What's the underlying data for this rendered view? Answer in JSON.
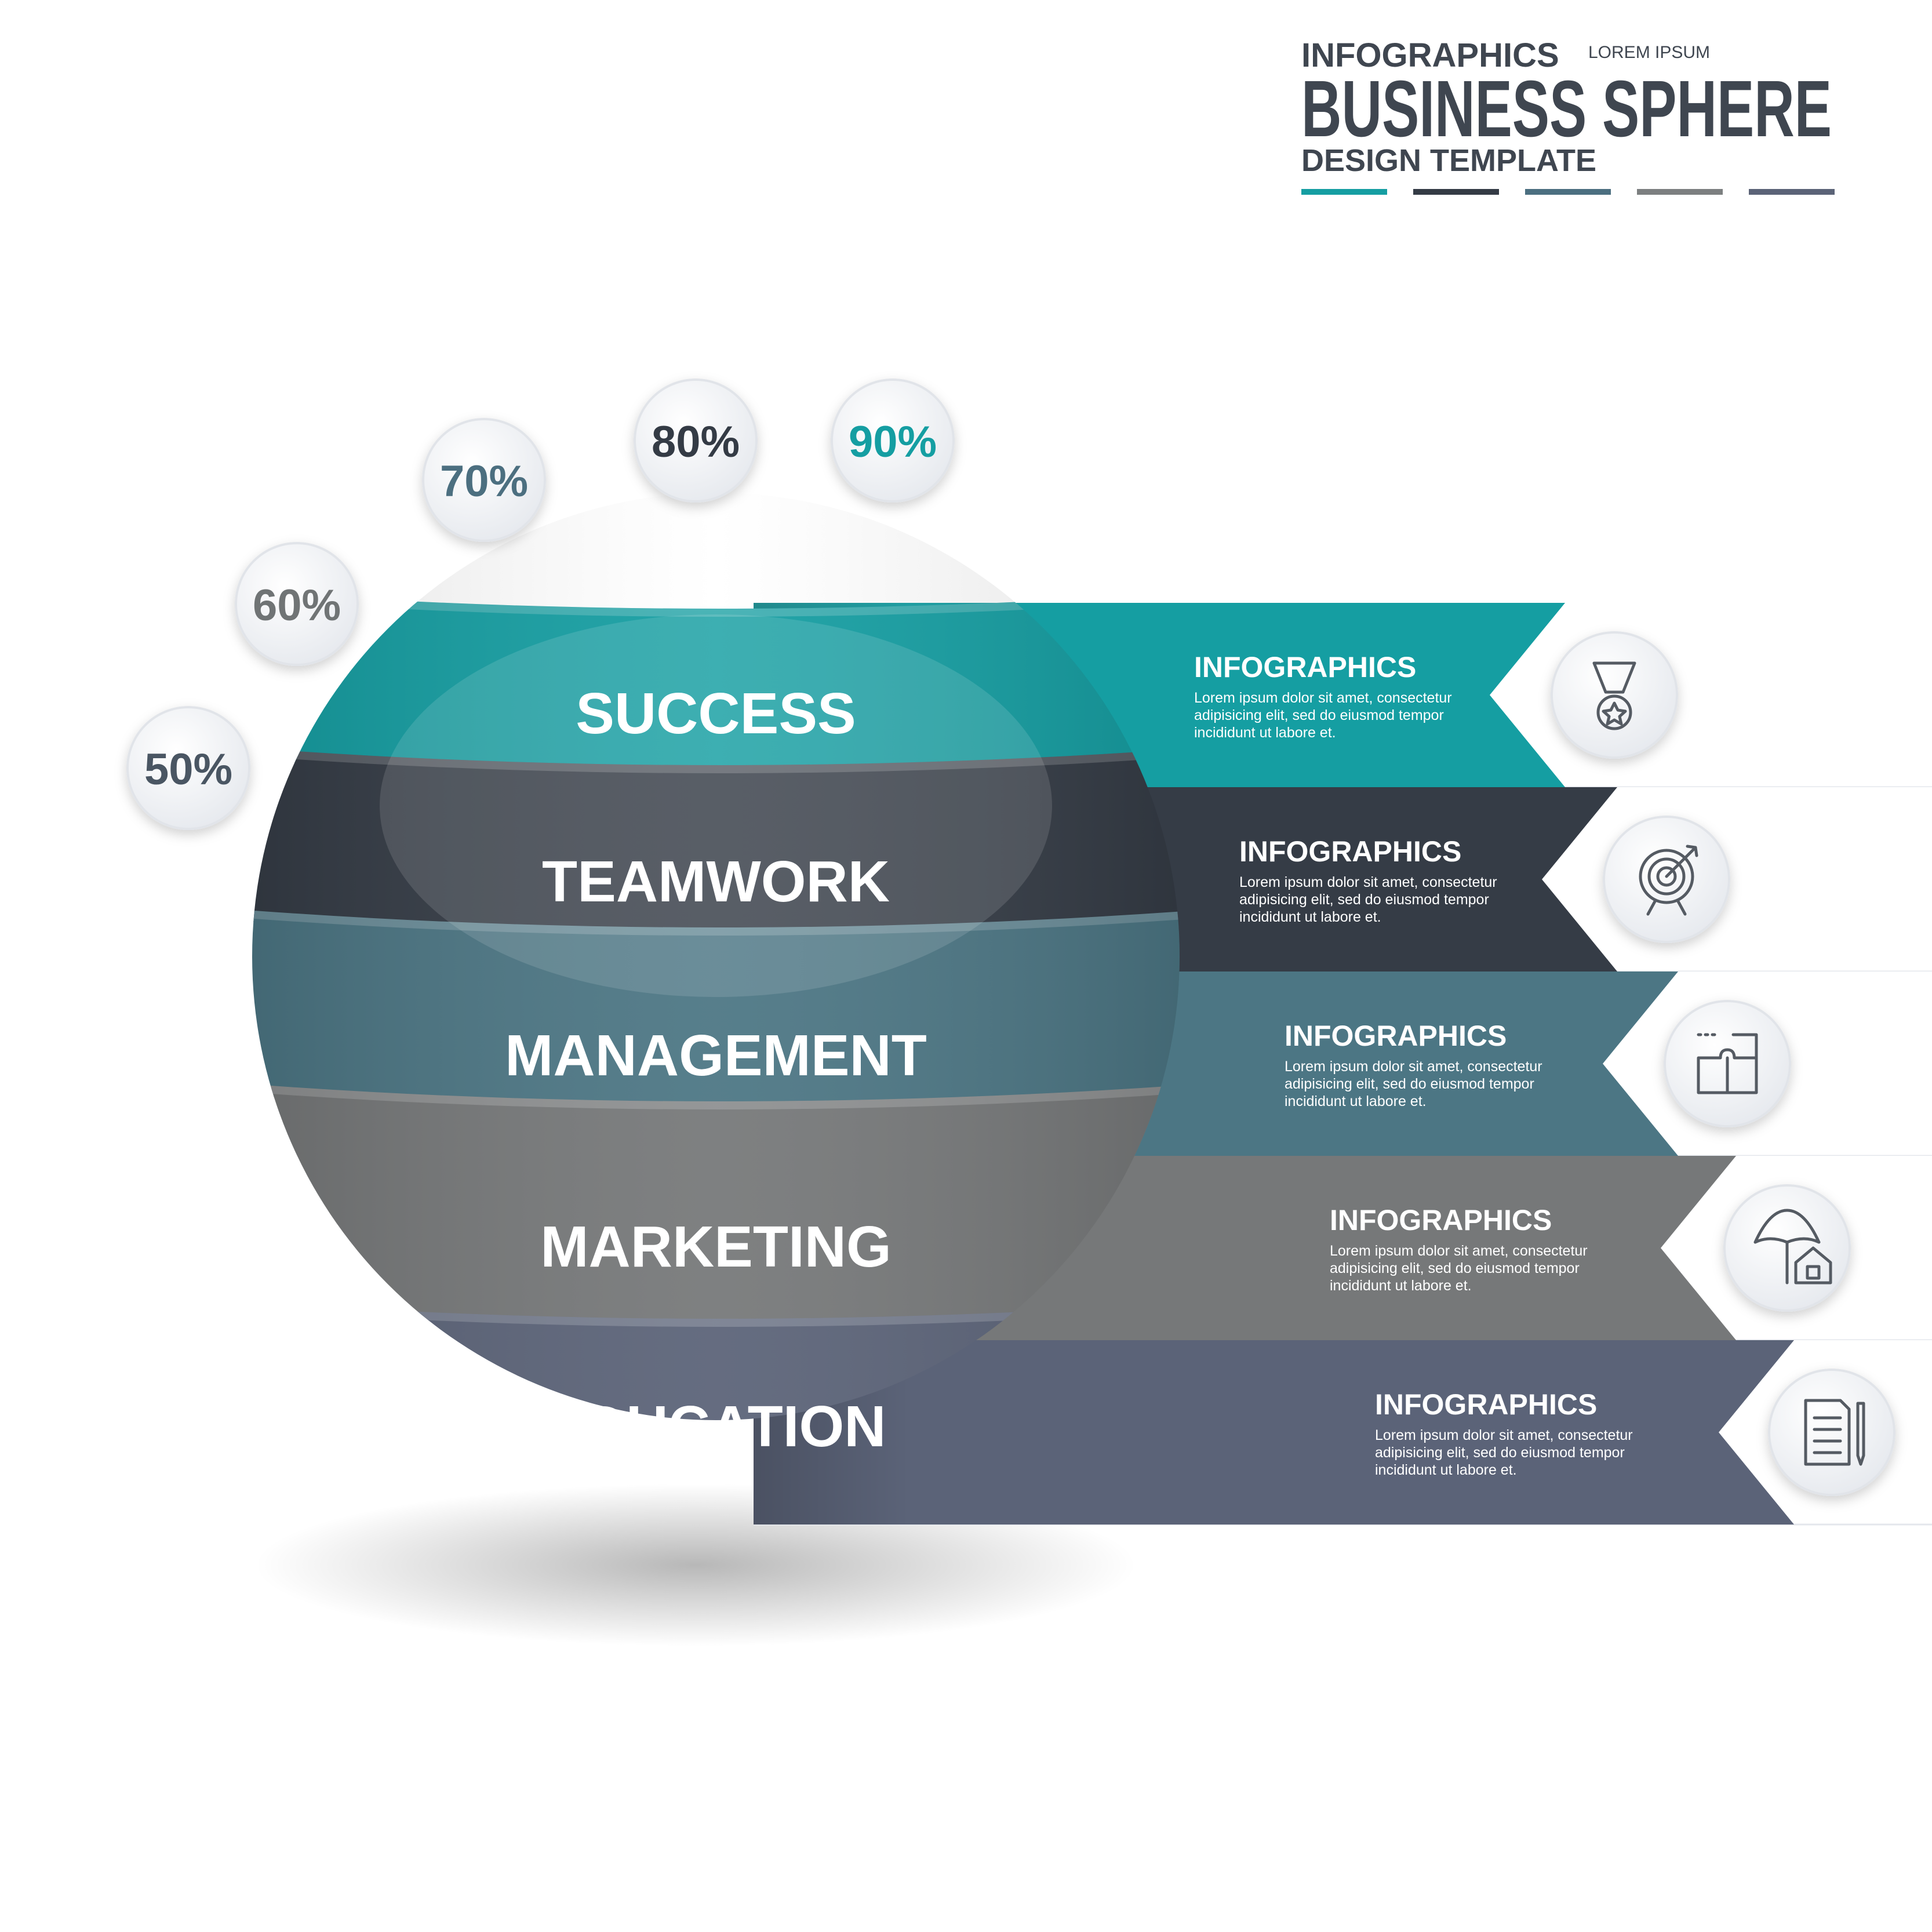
{
  "header": {
    "kicker": "INFOGRAPHICS",
    "kicker_small": "LOREM IPSUM",
    "title": "BUSINESS SPHERE",
    "subtitle": "DESIGN TEMPLATE",
    "color_bars": [
      "#159ea2",
      "#343b45",
      "#4c6f80",
      "#7c7f80",
      "#5b6377"
    ]
  },
  "percent_badges": [
    {
      "label": "50%",
      "color": "#4a5663"
    },
    {
      "label": "60%",
      "color": "#707475"
    },
    {
      "label": "70%",
      "color": "#4c6f80"
    },
    {
      "label": "80%",
      "color": "#343b45"
    },
    {
      "label": "90%",
      "color": "#159ea2"
    }
  ],
  "layers": [
    {
      "label": "SUCCESS",
      "color": "#159ea2",
      "heading": "INFOGRAPHICS",
      "body_lines": [
        "Lorem ipsum dolor sit amet, consectetur",
        "adipisicing elit, sed do eiusmod tempor",
        "incididunt ut labore et."
      ],
      "icon": "medal-icon"
    },
    {
      "label": "TEAMWORK",
      "color": "#353c46",
      "heading": "INFOGRAPHICS",
      "body_lines": [
        "Lorem ipsum dolor sit amet, consectetur",
        "adipisicing elit, sed do eiusmod tempor",
        "incididunt ut labore et."
      ],
      "icon": "target-icon"
    },
    {
      "label": "MANAGEMENT",
      "color": "#4c7684",
      "heading": "INFOGRAPHICS",
      "body_lines": [
        "Lorem ipsum dolor sit amet, consectetur",
        "adipisicing elit, sed do eiusmod tempor",
        "incididunt ut labore et."
      ],
      "icon": "puzzle-icon"
    },
    {
      "label": "MARKETING",
      "color": "#767879",
      "heading": "INFOGRAPHICS",
      "body_lines": [
        "Lorem ipsum dolor sit amet, consectetur",
        "adipisicing elit, sed do eiusmod tempor",
        "incididunt ut labore et."
      ],
      "icon": "umbrella-house-icon"
    },
    {
      "label": "EDUCATION",
      "color": "#5b6378",
      "heading": "INFOGRAPHICS",
      "body_lines": [
        "Lorem ipsum dolor sit amet, consectetur",
        "adipisicing elit, sed do eiusmod tempor",
        "incididunt ut labore et."
      ],
      "icon": "document-pen-icon"
    }
  ]
}
